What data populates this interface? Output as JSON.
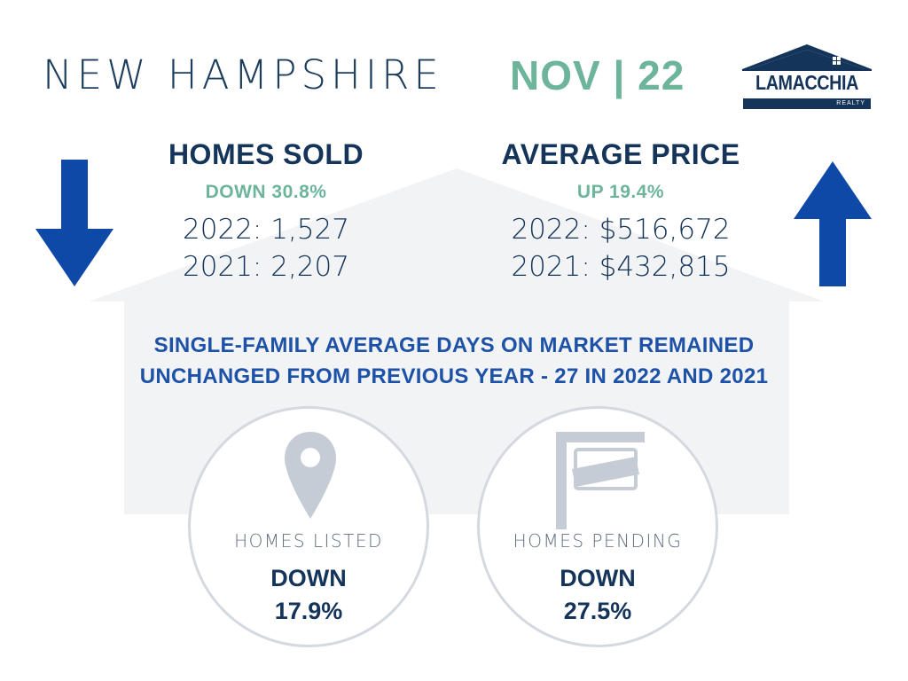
{
  "header": {
    "region": "NEW HAMPSHIRE",
    "period": "NOV | 22"
  },
  "logo": {
    "name": "LAMACCHIA",
    "sub": "REALTY"
  },
  "homes_sold": {
    "title": "HOMES SOLD",
    "change": "DOWN 30.8%",
    "value_2022": "2022: 1,527",
    "value_2021": "2021: 2,207",
    "trend_icon": "arrow-down-icon"
  },
  "average_price": {
    "title": "AVERAGE PRICE",
    "change": "UP 19.4%",
    "value_2022": "2022: $516,672",
    "value_2021": "2021: $432,815",
    "trend_icon": "arrow-up-icon"
  },
  "days_on_market": {
    "line1": "SINGLE-FAMILY AVERAGE DAYS ON MARKET REMAINED",
    "line2": "UNCHANGED FROM PREVIOUS YEAR - 27 IN 2022 AND 2021"
  },
  "homes_listed": {
    "label": "HOMES LISTED",
    "direction": "DOWN",
    "percent": "17.9%",
    "icon": "map-pin-icon"
  },
  "homes_pending": {
    "label": "HOMES PENDING",
    "direction": "DOWN",
    "percent": "27.5%",
    "icon": "sale-sign-icon"
  },
  "colors": {
    "navy": "#14345a",
    "green": "#6db59a",
    "arrow_blue": "#0f49a8",
    "statement_blue": "#1d52a8",
    "icon_gray": "#c5ccd6"
  }
}
